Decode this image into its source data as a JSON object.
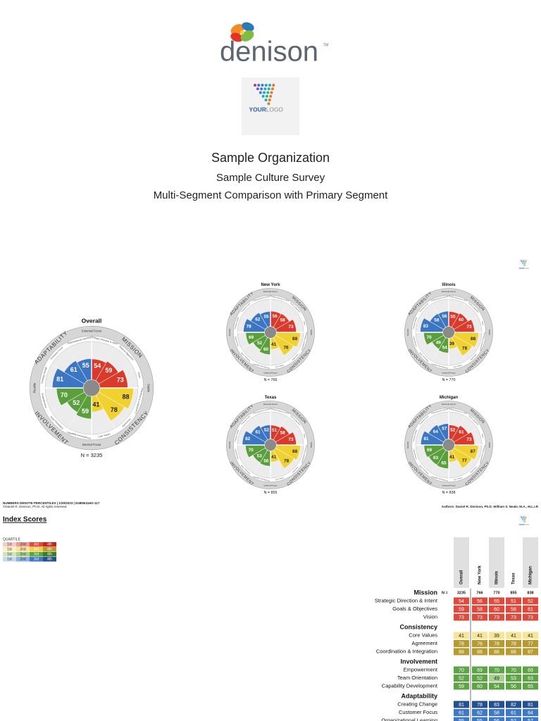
{
  "header": {
    "brand": "denison",
    "trademark": "TM",
    "logo": [
      "YOUR",
      "LOGO"
    ],
    "title": "Sample Organization",
    "subtitle": "Sample Culture Survey",
    "report": "Multi-Segment Comparison with Primary Segment"
  },
  "traits": [
    "Mission",
    "Consistency",
    "Involvement",
    "Adaptability"
  ],
  "indexes": [
    "Strategic Direction & Intent",
    "Goals & Objectives",
    "Vision",
    "Core Values",
    "Agreement",
    "Coordination & Integration",
    "Empowerment",
    "Team Orientation",
    "Capability Development",
    "Creating Change",
    "Customer Focus",
    "Organizational Learning"
  ],
  "axes": {
    "top": "External Focus",
    "bottom": "Internal Focus",
    "left": "Flexible",
    "right": "Stable"
  },
  "trait_colors": [
    "#d93a2b",
    "#f1d12f",
    "#5b9f3d",
    "#3c76c3"
  ],
  "n_prefix": "N =",
  "segments": [
    {
      "name": "Overall",
      "n": 3235,
      "scores": [
        54,
        59,
        73,
        41,
        78,
        88,
        70,
        52,
        59,
        81,
        61,
        55
      ]
    },
    {
      "name": "New York",
      "n": 766,
      "scores": [
        56,
        58,
        73,
        41,
        76,
        88,
        69,
        52,
        60,
        78,
        62,
        55
      ]
    },
    {
      "name": "Illinois",
      "n": 770,
      "scores": [
        55,
        60,
        73,
        39,
        78,
        88,
        70,
        49,
        54,
        83,
        58,
        56
      ]
    },
    {
      "name": "Texas",
      "n": 855,
      "scores": [
        51,
        58,
        73,
        41,
        78,
        88,
        70,
        53,
        56,
        82,
        61,
        52
      ]
    },
    {
      "name": "Michigan",
      "n": 838,
      "scores": [
        52,
        61,
        73,
        41,
        77,
        87,
        69,
        63,
        65,
        81,
        64,
        57
      ]
    }
  ],
  "footer": {
    "note": "NUMBERS DENOTE PERCENTILES  |  1/30/2023  |  D48NE416G-117",
    "copyright": "©Daniel R. Denison, Ph.D. All rights reserved",
    "authors": "Authors: Daniel R. Denison, Ph.D. William S. Neale, M.A., M.L.I.R"
  },
  "index_scores": {
    "title": "Index Scores",
    "quartile_title": "QUARTILE",
    "quartiles": [
      "1st",
      "2nd",
      "3rd",
      "4th"
    ],
    "colors": [
      [
        "#f6cbc6",
        "#ec9b93",
        "#dd4b3e",
        "#c0281f"
      ],
      [
        "#fbf0c0",
        "#f6e595",
        "#eed34a",
        "#b99a2e"
      ],
      [
        "#cfe5c2",
        "#a7d08f",
        "#5ea345",
        "#3b7b2a"
      ],
      [
        "#c7d8ef",
        "#8fb2e0",
        "#3f78c6",
        "#24508f"
      ]
    ]
  }
}
